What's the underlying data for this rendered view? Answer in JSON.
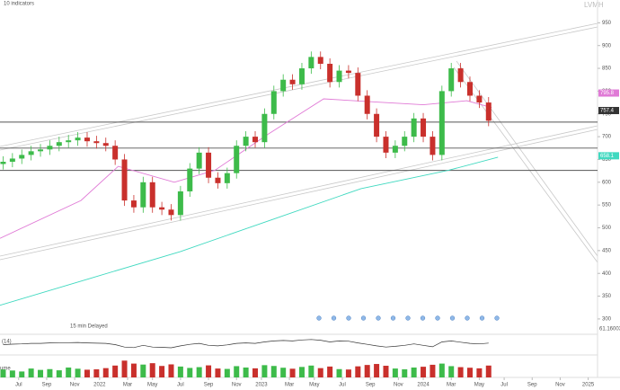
{
  "chart_data": {
    "type": "candlestick",
    "toolbar": "10 indicators",
    "symbol": "LVMH",
    "delay_note": "15 min Delayed",
    "xlim": [
      -6,
      186
    ],
    "xticks": [
      {
        "value": 0,
        "label": "Jul"
      },
      {
        "value": 9,
        "label": "Sep"
      },
      {
        "value": 18,
        "label": "Nov"
      },
      {
        "value": 26,
        "label": "2022"
      },
      {
        "value": 35,
        "label": "Mar"
      },
      {
        "value": 43,
        "label": "May"
      },
      {
        "value": 52,
        "label": "Jul"
      },
      {
        "value": 61,
        "label": "Sep"
      },
      {
        "value": 70,
        "label": "Nov"
      },
      {
        "value": 78,
        "label": "2023"
      },
      {
        "value": 87,
        "label": "Mar"
      },
      {
        "value": 95,
        "label": "May"
      },
      {
        "value": 104,
        "label": "Jul"
      },
      {
        "value": 113,
        "label": "Sep"
      },
      {
        "value": 122,
        "label": "Nov"
      },
      {
        "value": 130,
        "label": "2024"
      },
      {
        "value": 139,
        "label": "Mar"
      },
      {
        "value": 148,
        "label": "May"
      },
      {
        "value": 156,
        "label": "Jul"
      },
      {
        "value": 165,
        "label": "Sep"
      },
      {
        "value": 174,
        "label": "Nov"
      },
      {
        "value": 183,
        "label": "2025"
      }
    ],
    "ylim": [
      290,
      1000
    ],
    "yticks": [
      300,
      350,
      400,
      450,
      500,
      550,
      600,
      650,
      700,
      750,
      800,
      850,
      900,
      950
    ],
    "x": [
      -5,
      -2,
      1,
      4,
      7,
      10,
      13,
      16,
      19,
      22,
      25,
      28,
      31,
      34,
      37,
      40,
      43,
      46,
      49,
      52,
      55,
      58,
      61,
      64,
      67,
      70,
      73,
      76,
      79,
      82,
      85,
      88,
      91,
      94,
      97,
      100,
      103,
      106,
      109,
      112,
      115,
      118,
      121,
      124,
      127,
      130,
      133,
      136,
      139,
      142,
      145,
      148,
      151
    ],
    "open": [
      640,
      645,
      652,
      660,
      668,
      672,
      680,
      688,
      692,
      698,
      690,
      686,
      680,
      650,
      560,
      545,
      600,
      545,
      540,
      528,
      580,
      630,
      665,
      610,
      598,
      620,
      680,
      700,
      688,
      750,
      800,
      825,
      815,
      850,
      875,
      860,
      820,
      845,
      840,
      790,
      750,
      700,
      665,
      680,
      700,
      740,
      700,
      660,
      800,
      850,
      820,
      790,
      775
    ],
    "high": [
      657,
      664,
      672,
      680,
      684,
      692,
      700,
      704,
      710,
      710,
      702,
      698,
      692,
      662,
      572,
      612,
      612,
      557,
      552,
      592,
      642,
      677,
      677,
      622,
      632,
      692,
      712,
      712,
      762,
      812,
      837,
      837,
      862,
      887,
      887,
      872,
      857,
      857,
      852,
      802,
      762,
      712,
      692,
      712,
      752,
      752,
      712,
      812,
      862,
      862,
      832,
      802,
      787
    ],
    "low": [
      628,
      633,
      640,
      648,
      656,
      660,
      668,
      676,
      680,
      678,
      674,
      668,
      638,
      548,
      533,
      533,
      533,
      528,
      516,
      516,
      568,
      618,
      598,
      586,
      586,
      608,
      668,
      676,
      676,
      738,
      788,
      803,
      803,
      838,
      848,
      808,
      808,
      828,
      778,
      738,
      688,
      653,
      653,
      668,
      688,
      688,
      648,
      648,
      788,
      808,
      778,
      763,
      723
    ],
    "close": [
      645,
      652,
      660,
      668,
      672,
      680,
      688,
      692,
      698,
      690,
      686,
      680,
      650,
      560,
      545,
      600,
      545,
      540,
      528,
      580,
      630,
      665,
      610,
      598,
      620,
      680,
      700,
      688,
      750,
      800,
      825,
      815,
      850,
      875,
      860,
      820,
      845,
      840,
      790,
      750,
      700,
      665,
      680,
      700,
      740,
      700,
      660,
      800,
      850,
      820,
      790,
      775,
      735
    ],
    "up_color": "#3dbb4a",
    "down_color": "#c9302c",
    "last_price": {
      "value": 757.4,
      "label": "757.4",
      "color": "#333333"
    },
    "series": [
      {
        "color": "#e07ad6",
        "value": 795.8,
        "value_label": "795.8",
        "x": [
          -6,
          20,
          32,
          50,
          63,
          80,
          98,
          115,
          130,
          144,
          152
        ],
        "values": [
          477,
          560,
          635,
          600,
          626,
          705,
          783,
          776,
          770,
          779,
          764
        ]
      },
      {
        "color": "#40d9c0",
        "value": 658.1,
        "value_label": "658.1",
        "x": [
          -6,
          23,
          52,
          81,
          110,
          138,
          154
        ],
        "values": [
          330,
          389,
          448,
          517,
          586,
          626,
          655
        ]
      }
    ],
    "levels": [
      732,
      675,
      626
    ],
    "indicator": {
      "name": "(14)",
      "ylim": [
        20,
        90
      ],
      "value_label": "61.16003",
      "values": [
        55,
        57,
        58,
        60,
        60,
        62,
        63,
        63,
        64,
        62,
        61,
        60,
        55,
        45,
        43,
        52,
        45,
        44,
        42,
        50,
        56,
        60,
        52,
        50,
        54,
        60,
        62,
        60,
        66,
        70,
        72,
        70,
        74,
        76,
        73,
        66,
        70,
        69,
        62,
        56,
        50,
        45,
        48,
        52,
        58,
        52,
        46,
        66,
        70,
        65,
        60,
        58,
        61.16003
      ]
    },
    "volume": {
      "name": "ume",
      "ylim": [
        0,
        100
      ],
      "values": [
        40,
        35,
        30,
        45,
        38,
        42,
        36,
        50,
        44,
        39,
        41,
        47,
        60,
        85,
        70,
        65,
        72,
        58,
        66,
        55,
        48,
        52,
        61,
        45,
        43,
        57,
        50,
        46,
        62,
        58,
        49,
        44,
        53,
        60,
        47,
        55,
        42,
        40,
        56,
        63,
        68,
        59,
        45,
        41,
        50,
        54,
        64,
        70,
        57,
        52,
        49,
        46,
        60
      ]
    }
  }
}
